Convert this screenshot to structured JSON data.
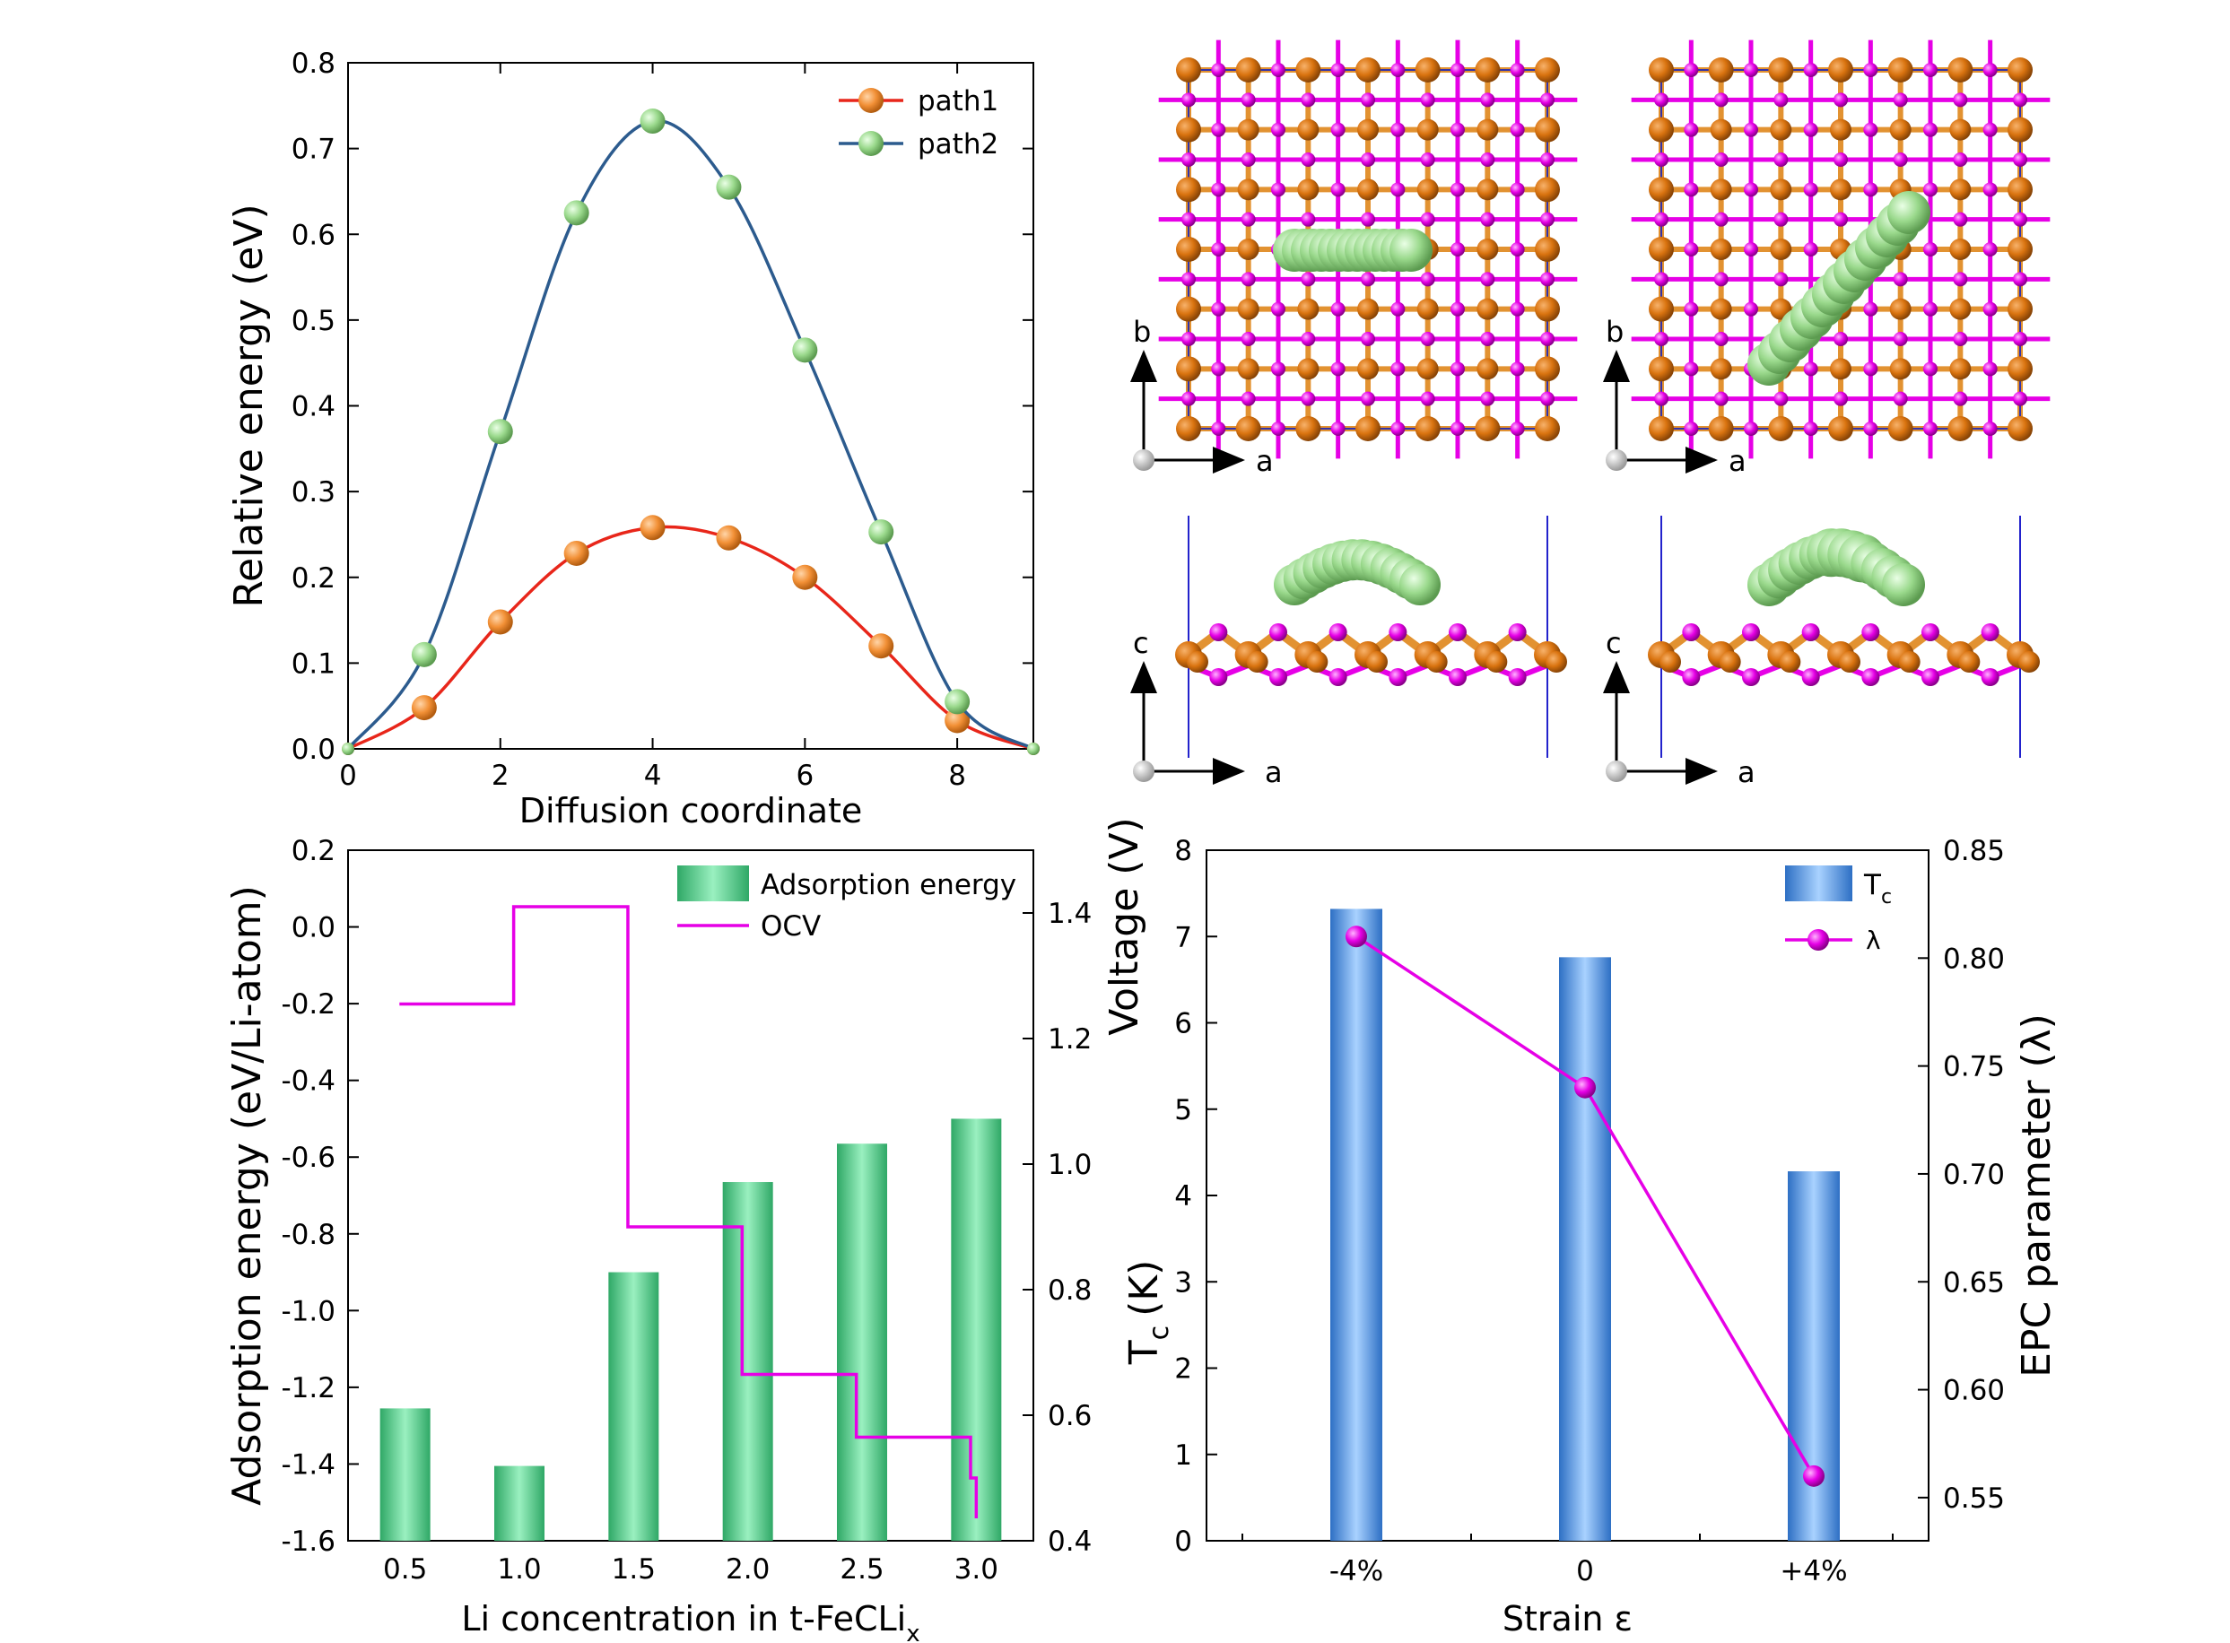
{
  "chart_data": [
    {
      "panel": "top-left",
      "type": "line",
      "xlabel": "Diffusion coordinate",
      "ylabel": "Relative energy (eV)",
      "xlim": [
        0,
        9
      ],
      "ylim": [
        0,
        0.8
      ],
      "xticks": [
        "0",
        "2",
        "4",
        "6",
        "8"
      ],
      "yticks": [
        "0.0",
        "0.1",
        "0.2",
        "0.3",
        "0.4",
        "0.5",
        "0.6",
        "0.7",
        "0.8"
      ],
      "legend_position": "top-right",
      "series": [
        {
          "name": "path1",
          "color": "#e8261a",
          "marker_color": "#f7943c",
          "x": [
            0,
            1,
            2,
            3,
            4,
            5,
            6,
            7,
            8,
            9
          ],
          "y": [
            0.0,
            0.048,
            0.148,
            0.228,
            0.258,
            0.246,
            0.2,
            0.12,
            0.033,
            0.0
          ]
        },
        {
          "name": "path2",
          "color": "#2c5b8e",
          "marker_color": "#a6dc9b",
          "x": [
            0,
            1,
            2,
            3,
            4,
            5,
            6,
            7,
            8,
            9
          ],
          "y": [
            0.0,
            0.11,
            0.37,
            0.625,
            0.732,
            0.655,
            0.465,
            0.253,
            0.055,
            0.0
          ]
        }
      ]
    },
    {
      "panel": "top-right",
      "type": "structure",
      "axis_labels": {
        "a": "a",
        "b": "b",
        "c": "c"
      }
    },
    {
      "panel": "bottom-left",
      "type": "bar",
      "xlabel": "Li concentration in t-FeCLi",
      "xlabel_sub": "x",
      "ylabel": "Adsorption energy (eV/Li-atom)",
      "y2label": "Voltage (V)",
      "categories": [
        "0.5",
        "1.0",
        "1.5",
        "2.0",
        "2.5",
        "3.0"
      ],
      "ylim": [
        -1.6,
        0.2
      ],
      "y2lim": [
        0.4,
        1.5
      ],
      "yticks": [
        "0.2",
        "0.0",
        "-0.2",
        "-0.4",
        "-0.6",
        "-0.8",
        "-1.0",
        "-1.2",
        "-1.4",
        "-1.6"
      ],
      "y2ticks": [
        "1.4",
        "1.2",
        "1.0",
        "0.8",
        "0.6",
        "0.4"
      ],
      "legend_position": "top-right",
      "series": [
        {
          "name": "Adsorption energy",
          "color": "#3ec47f",
          "axis": "left",
          "values": [
            -1.255,
            -1.405,
            -0.9,
            -0.665,
            -0.565,
            -0.5
          ]
        },
        {
          "name": "OCV",
          "color": "#e600e6",
          "axis": "right",
          "style": "step",
          "values": [
            1.255,
            1.41,
            0.9,
            0.665,
            0.565,
            0.5
          ]
        }
      ]
    },
    {
      "panel": "bottom-right",
      "type": "bar",
      "xlabel": "Strain ε",
      "ylabel": "T",
      "ylabel_sub": "c",
      "ylabel_unit": "(K)",
      "y2label": "EPC parameter (λ)",
      "categories": [
        "-4%",
        "0",
        "+4%"
      ],
      "ylim": [
        0,
        8
      ],
      "y2lim": [
        0.53,
        0.85
      ],
      "yticks": [
        "0",
        "1",
        "2",
        "3",
        "4",
        "5",
        "6",
        "7",
        "8"
      ],
      "y2ticks": [
        "0.55",
        "0.60",
        "0.65",
        "0.70",
        "0.75",
        "0.80",
        "0.85"
      ],
      "legend_position": "top-right",
      "series": [
        {
          "name": "T",
          "name_sub": "c",
          "color": "#4a90e2",
          "axis": "left",
          "values": [
            7.32,
            6.76,
            4.28
          ]
        },
        {
          "name": "λ",
          "color": "#e600e6",
          "axis": "right",
          "style": "line-marker",
          "values": [
            0.81,
            0.74,
            0.56
          ]
        }
      ]
    }
  ]
}
